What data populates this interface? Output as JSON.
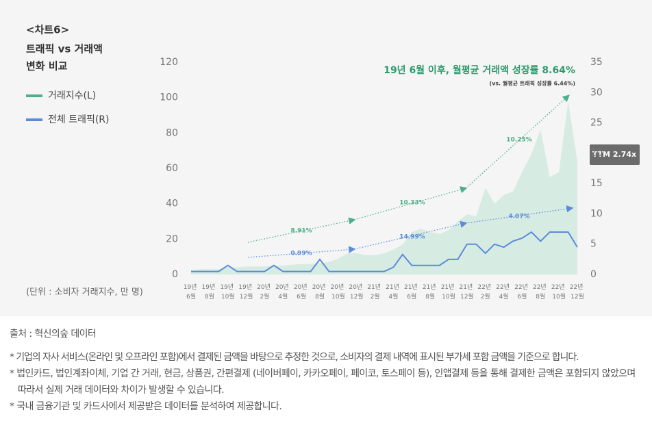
{
  "chart_data": {
    "type": "area-line",
    "title": "<차트6>",
    "subtitle": [
      "트래픽 vs 거래액",
      "변화 비교"
    ],
    "unit_note": "(단위 : 소비자 거래지수, 만 명)",
    "headline": "19년 6월 이후, 월평균 거래액 성장률 8.64%",
    "headline_sub": "(vs. 월평균 트래픽 성장률 6.44%)",
    "badge": "TTM 2.74x",
    "categories": [
      "19년 6월",
      null,
      "19년 8월",
      null,
      "19년 10월",
      null,
      "19년 12월",
      null,
      "20년 2월",
      null,
      "20년 4월",
      null,
      "20년 6월",
      null,
      "20년 8월",
      null,
      "20년 10월",
      null,
      "20년 12월",
      null,
      "21년 2월",
      null,
      "21년 4월",
      null,
      "21년 6월",
      null,
      "21년 8월",
      null,
      "21년 10월",
      null,
      "21년 12월",
      null,
      "22년 2월",
      null,
      "22년 4월",
      null,
      "22년 6월",
      null,
      "22년 8월",
      null,
      "22년 10월",
      null,
      "22년 12월"
    ],
    "series": [
      {
        "name": "거래지수(L)",
        "color": "#4daf8a",
        "fill": "#d6ebe2",
        "axis": "y",
        "values": [
          2.5,
          3,
          3,
          3,
          4,
          4,
          4.5,
          4.5,
          4.5,
          5,
          5,
          5.5,
          6,
          6,
          6.5,
          7,
          9,
          12,
          12,
          11,
          11,
          12,
          14,
          17,
          24,
          26,
          24,
          23,
          25,
          30,
          34,
          33,
          49,
          40,
          45,
          47,
          58,
          68,
          82,
          55,
          58,
          98,
          64
        ]
      },
      {
        "name": "전체 트래픽(R)",
        "color": "#5b8bd9",
        "axis": "y2",
        "values": [
          0.5,
          0.5,
          0.5,
          0.5,
          1.5,
          0.5,
          0.5,
          0.5,
          0.5,
          1.5,
          0.5,
          0.5,
          0.5,
          0.5,
          2.5,
          0.5,
          0.5,
          0.5,
          0.5,
          0.5,
          0.5,
          0.5,
          1.2,
          3.3,
          1.5,
          1.5,
          1.5,
          1.5,
          2.5,
          2.5,
          5,
          5,
          3.5,
          5,
          4.5,
          5.5,
          6,
          7,
          5.5,
          7,
          7,
          7,
          4.5
        ]
      }
    ],
    "trend_labels_l": [
      "8.91%",
      "10.33%",
      "10.25%"
    ],
    "trend_labels_r": [
      "0.99%",
      "14.99%",
      "4.07%"
    ],
    "ylim": [
      0,
      120
    ],
    "yticks": [
      0,
      20,
      40,
      60,
      80,
      100,
      120
    ],
    "y2lim": [
      0,
      35
    ],
    "y2ticks": [
      0,
      5,
      10,
      15,
      20,
      25,
      30,
      35
    ]
  },
  "footer": {
    "source": "출처 : 혁신의숲 데이터",
    "notes": [
      "* 기업의 자사 서비스(온라인 및 오프라인 포함)에서 결제된 금액을 바탕으로 추정한 것으로, 소비자의 결제 내역에 표시된 부가세 포함 금액을 기준으로 합니다.",
      "* 법인카드, 법인계좌이체, 기업 간 거래, 현금, 상품권, 간편결제 (네이버페이, 카카오페이, 페이코, 토스페이 등), 인앱결제 등을 통해 결제한 금액은 포함되지 않았으며 따라서 실제 거래 데이터와 차이가 발생할 수 있습니다.",
      "* 국내 금융기관 및 카드사에서 제공받은 데이터를 분석하여 제공합니다."
    ]
  }
}
